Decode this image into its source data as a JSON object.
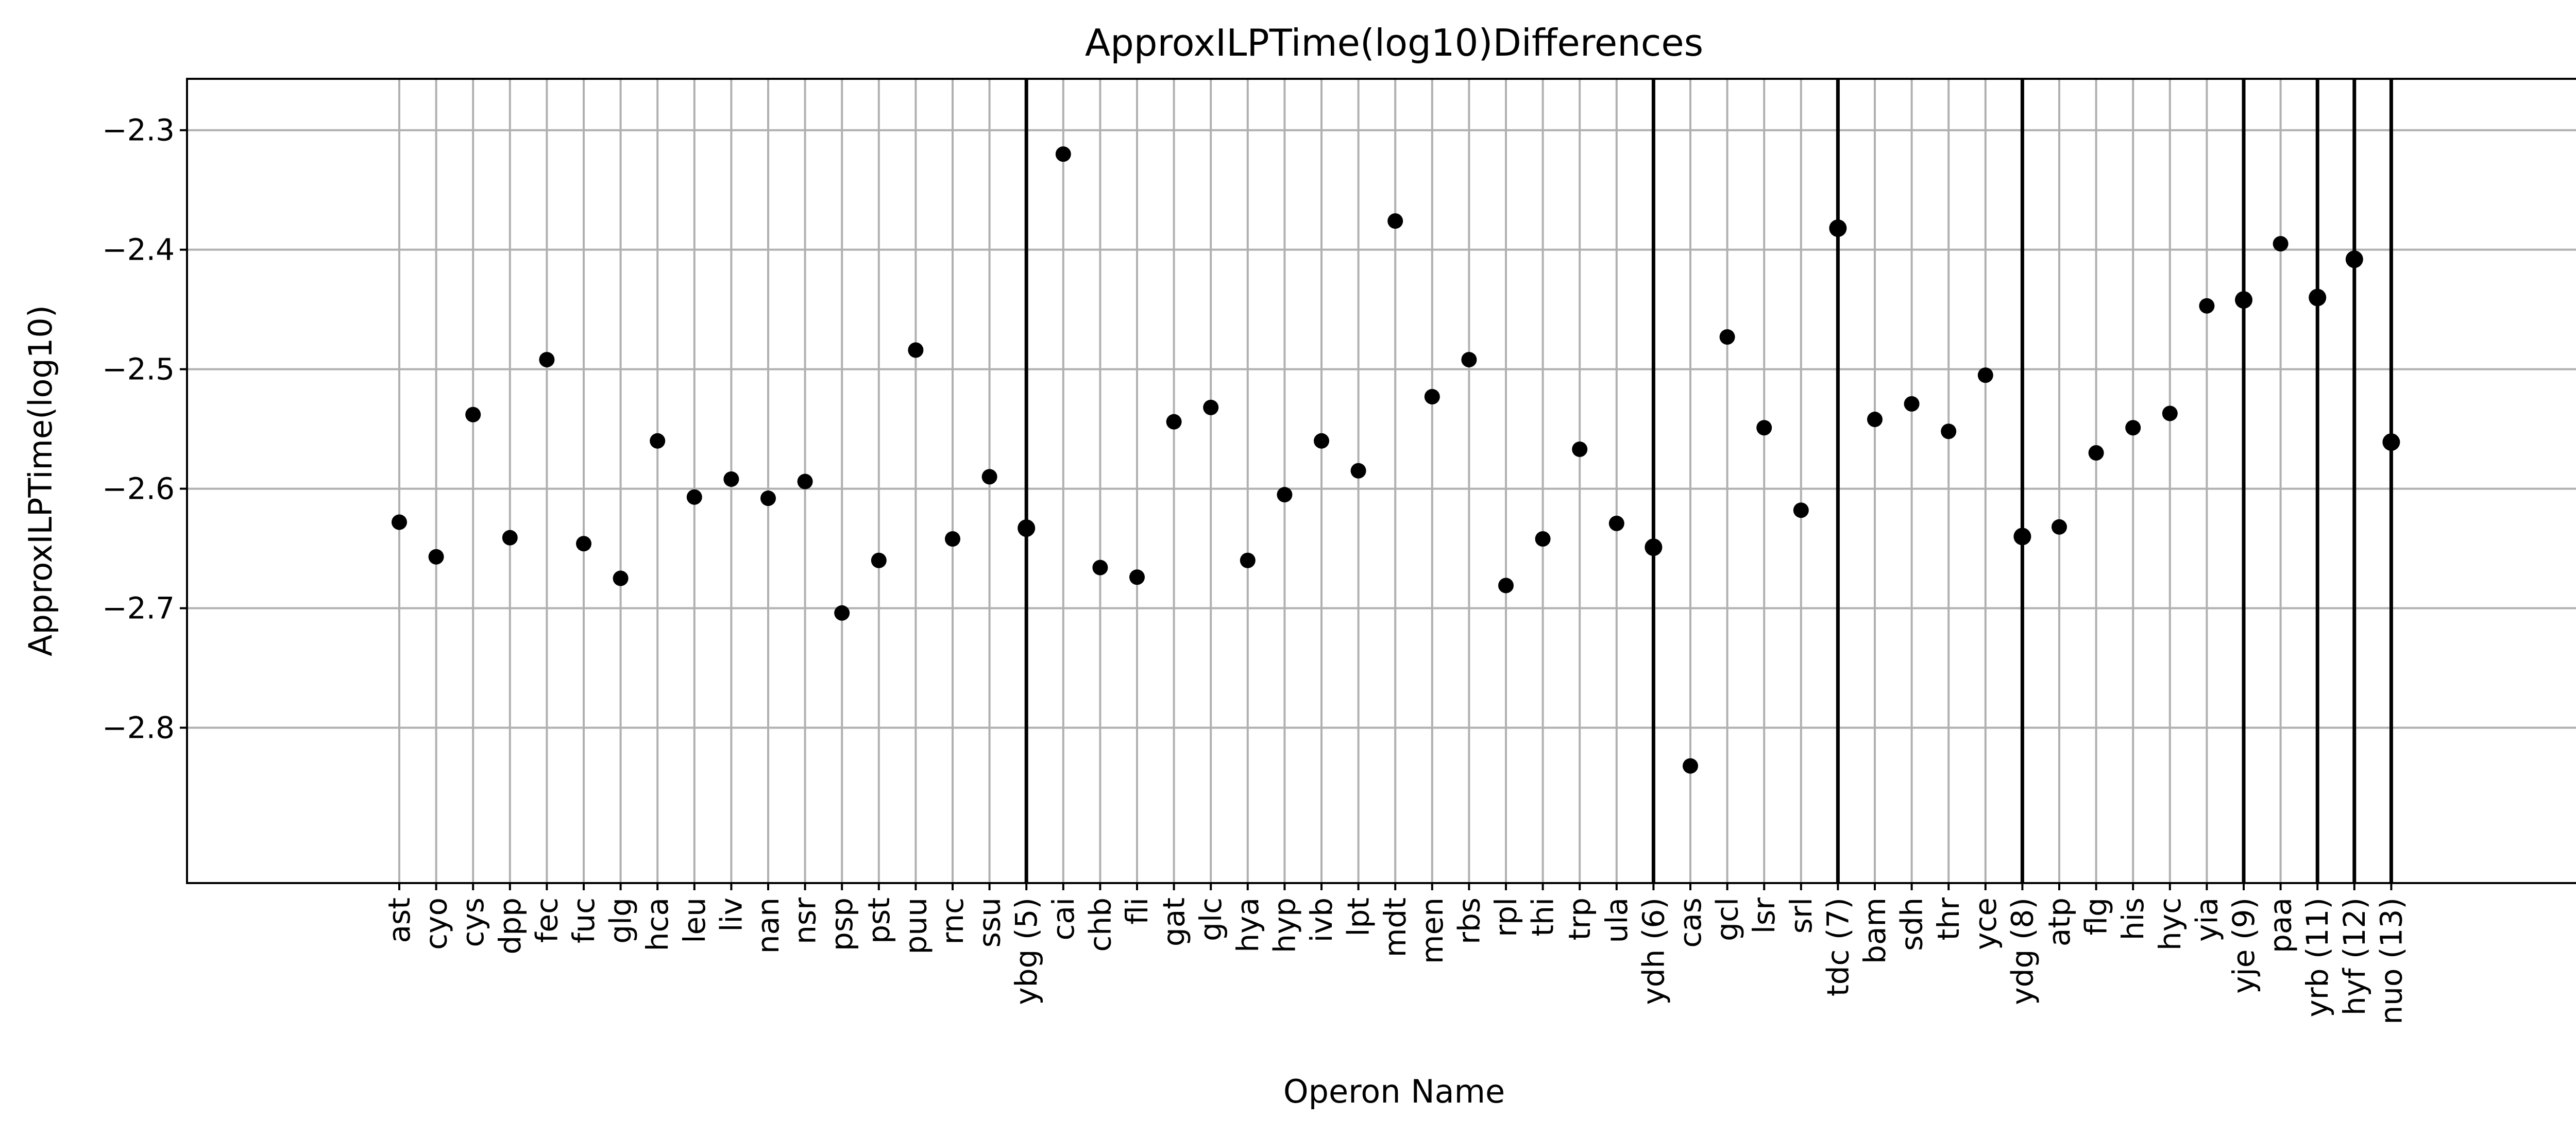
{
  "chart_data": {
    "type": "scatter",
    "title": "ApproxILPTime(log10)Differences",
    "xlabel": "Operon Name",
    "ylabel": "ApproxILPTime(log10)",
    "ylim": [
      -2.93,
      -2.257
    ],
    "yticks": [
      -2.3,
      -2.4,
      -2.5,
      -2.6,
      -2.7,
      -2.8
    ],
    "ytick_labels": [
      "−2.3",
      "−2.4",
      "−2.5",
      "−2.6",
      "−2.7",
      "−2.8"
    ],
    "grid": true,
    "categories": [
      "ast",
      "cyo",
      "cys",
      "dpp",
      "fec",
      "fuc",
      "glg",
      "hca",
      "leu",
      "liv",
      "nan",
      "nsr",
      "psp",
      "pst",
      "puu",
      "rnc",
      "ssu",
      "ybg (5)",
      "cai",
      "chb",
      "fli",
      "gat",
      "glc",
      "hya",
      "hyp",
      "ivb",
      "lpt",
      "mdt",
      "men",
      "rbs",
      "rpl",
      "thi",
      "trp",
      "ula",
      "ydh (6)",
      "cas",
      "gcl",
      "lsr",
      "srl",
      "tdc (7)",
      "bam",
      "sdh",
      "thr",
      "yce",
      "ydg (8)",
      "atp",
      "flg",
      "his",
      "hyc",
      "yia",
      "yje (9)",
      "paa",
      "yrb (11)",
      "hyf (12)",
      "nuo (13)"
    ],
    "values": [
      -2.628,
      -2.657,
      -2.538,
      -2.641,
      -2.492,
      -2.646,
      -2.675,
      -2.56,
      -2.607,
      -2.592,
      -2.608,
      -2.594,
      -2.704,
      -2.66,
      -2.484,
      -2.642,
      -2.59,
      -2.633,
      -2.32,
      -2.666,
      -2.674,
      -2.544,
      -2.532,
      -2.66,
      -2.605,
      -2.56,
      -2.585,
      -2.376,
      -2.523,
      -2.492,
      -2.681,
      -2.642,
      -2.567,
      -2.629,
      -2.649,
      -2.832,
      -2.473,
      -2.549,
      -2.618,
      -2.382,
      -2.542,
      -2.529,
      -2.552,
      -2.505,
      -2.64,
      -2.632,
      -2.57,
      -2.549,
      -2.537,
      -2.447,
      -2.442,
      -2.395,
      -2.44,
      -2.408,
      -2.561
    ],
    "highlighted_categories": [
      "ybg (5)",
      "ydh (6)",
      "tdc (7)",
      "ydg (8)",
      "yje (9)",
      "yrb (11)",
      "hyf (12)",
      "nuo (13)"
    ],
    "colors": {
      "point": "#000000",
      "grid": "#b0b0b0",
      "highlight_line": "#000000",
      "axis": "#000000"
    }
  }
}
